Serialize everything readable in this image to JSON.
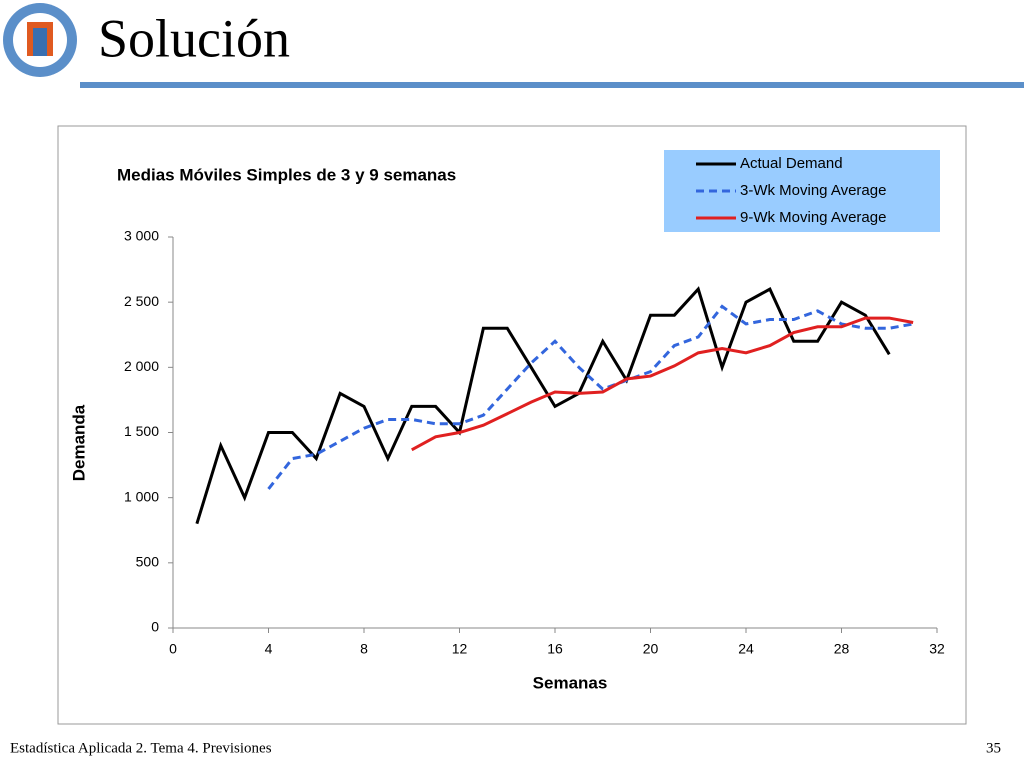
{
  "slide": {
    "title": "Solución",
    "footer": "Estadística Aplicada 2. Tema 4. Previsiones",
    "page": "35"
  },
  "chart_data": {
    "type": "line",
    "title": "Medias Móviles Simples de 3 y 9 semanas",
    "x_label": "Semanas",
    "y_label": "Demanda",
    "x": [
      1,
      2,
      3,
      4,
      5,
      6,
      7,
      8,
      9,
      10,
      11,
      12,
      13,
      14,
      15,
      16,
      17,
      18,
      19,
      20,
      21,
      22,
      23,
      24,
      25,
      26,
      27,
      28,
      29,
      30,
      31
    ],
    "series": [
      {
        "name": "Actual Demand",
        "color": "#000000",
        "style": "solid",
        "values": [
          800,
          1400,
          1000,
          1500,
          1500,
          1300,
          1800,
          1700,
          1300,
          1700,
          1700,
          1500,
          2300,
          2300,
          2000,
          1700,
          1800,
          2200,
          1900,
          2400,
          2400,
          2600,
          2000,
          2500,
          2600,
          2200,
          2200,
          2500,
          2400,
          2100,
          null
        ]
      },
      {
        "name": "3-Wk Moving Average",
        "color": "#3366dd",
        "style": "dashed",
        "values": [
          null,
          null,
          null,
          1067,
          1300,
          1333,
          1433,
          1533,
          1600,
          1600,
          1567,
          1567,
          1633,
          1833,
          2033,
          2200,
          2000,
          1833,
          1900,
          1967,
          2167,
          2233,
          2467,
          2333,
          2367,
          2367,
          2433,
          2333,
          2300,
          2300,
          2333
        ]
      },
      {
        "name": "9-Wk Moving Average",
        "color": "#e02020",
        "style": "solid",
        "values": [
          null,
          null,
          null,
          null,
          null,
          null,
          null,
          null,
          null,
          1367,
          1467,
          1500,
          1556,
          1644,
          1733,
          1811,
          1800,
          1811,
          1911,
          1933,
          2011,
          2111,
          2144,
          2111,
          2167,
          2267,
          2311,
          2311,
          2378,
          2378,
          2344
        ]
      }
    ],
    "xlim": [
      0,
      32
    ],
    "xticks": [
      0,
      4,
      8,
      12,
      16,
      20,
      24,
      28,
      32
    ],
    "ylim": [
      0,
      3000
    ],
    "yticks": [
      0,
      500,
      {
        "value": 1000,
        "label": "1 000"
      },
      {
        "value": 1500,
        "label": "1 500"
      },
      {
        "value": 2000,
        "label": "2 000"
      },
      {
        "value": 2500,
        "label": "2 500"
      },
      {
        "value": 3000,
        "label": "3 000"
      }
    ],
    "legend": "upper right",
    "legend_color": "#99ccff"
  }
}
